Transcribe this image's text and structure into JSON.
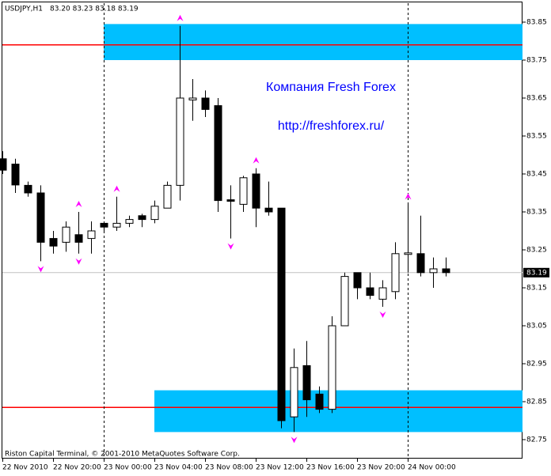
{
  "chart_data": {
    "type": "candlestick",
    "symbol": "USDJPY,H1",
    "quote": "83.20 83.23 83.18 83.19",
    "watermark": [
      "Компания Fresh Forex",
      "http://freshforex.ru/"
    ],
    "footer": "Riston Capital Terminal, © 2001-2010 MetaQuotes Software Corp.",
    "categories": [
      "22 Nov 2010",
      null,
      null,
      null,
      "22 Nov 20:00",
      null,
      null,
      null,
      "23 Nov 00:00",
      null,
      null,
      null,
      "23 Nov 04:00",
      null,
      null,
      null,
      "23 Nov 08:00",
      null,
      null,
      null,
      "23 Nov 12:00",
      null,
      null,
      null,
      "23 Nov 16:00",
      null,
      null,
      null,
      "23 Nov 20:00",
      null,
      null,
      null,
      "24 Nov 00:00",
      null,
      null,
      null
    ],
    "open": [
      83.49,
      83.476,
      83.42,
      83.4,
      83.28,
      83.27,
      83.29,
      83.28,
      83.32,
      83.31,
      83.32,
      83.34,
      83.33,
      83.36,
      83.42,
      83.645,
      83.65,
      83.63,
      83.382,
      83.37,
      83.45,
      83.36,
      83.36,
      82.81,
      82.945,
      82.87,
      82.83,
      83.05,
      83.19,
      83.15,
      83.12,
      83.14,
      83.238,
      83.24,
      83.19,
      83.2
    ],
    "high": [
      83.51,
      83.49,
      83.43,
      83.42,
      83.3,
      83.325,
      83.35,
      83.325,
      83.325,
      83.39,
      83.34,
      83.345,
      83.38,
      83.43,
      83.84,
      83.7,
      83.67,
      83.65,
      83.42,
      83.445,
      83.465,
      83.43,
      83.36,
      82.99,
      83.01,
      82.89,
      83.075,
      83.19,
      83.19,
      83.19,
      83.17,
      83.27,
      83.37,
      83.34,
      83.23,
      83.23
    ],
    "low": [
      83.45,
      83.4,
      83.39,
      83.22,
      83.24,
      83.245,
      83.24,
      83.24,
      83.3,
      83.3,
      83.31,
      83.31,
      83.32,
      83.36,
      83.38,
      83.59,
      83.6,
      83.35,
      83.28,
      83.35,
      83.31,
      83.34,
      82.78,
      82.77,
      82.81,
      82.82,
      82.82,
      83.05,
      83.12,
      83.12,
      83.1,
      83.12,
      83.19,
      83.18,
      83.15,
      83.18
    ],
    "close": [
      83.46,
      83.421,
      83.4,
      83.27,
      83.26,
      83.31,
      83.27,
      83.3,
      83.31,
      83.32,
      83.33,
      83.33,
      83.365,
      83.42,
      83.65,
      83.65,
      83.62,
      83.38,
      83.378,
      83.44,
      83.36,
      83.35,
      82.8,
      82.94,
      82.855,
      82.83,
      83.05,
      83.18,
      83.15,
      83.13,
      83.15,
      83.24,
      83.242,
      83.19,
      83.2,
      83.19
    ],
    "up_color": "#ffffff",
    "down_color": "#000000",
    "fractal_highs": [
      6,
      9,
      14,
      20,
      32
    ],
    "fractal_lows": [
      3,
      6,
      18,
      23,
      30
    ],
    "fractal_color": "#ff00ff",
    "zones": [
      {
        "from": 83.75,
        "to": 83.845,
        "start": 8
      },
      {
        "from": 82.77,
        "to": 82.88,
        "start": 12
      }
    ],
    "zone_color": "#00bfff",
    "levels": [
      83.79,
      82.835
    ],
    "level_color": "#ff0000",
    "separators": [
      8,
      32
    ],
    "last_price": 83.19,
    "ylim": [
      82.7,
      83.9
    ],
    "yticks": [
      83.85,
      83.75,
      83.65,
      83.55,
      83.45,
      83.35,
      83.25,
      83.15,
      83.05,
      82.95,
      82.85,
      82.75
    ]
  }
}
